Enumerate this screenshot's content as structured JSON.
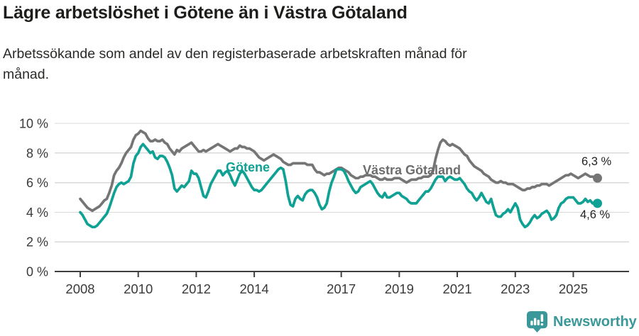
{
  "header": {
    "title": "Lägre arbetslöshet i Götene än i Västra Götaland",
    "subtitle": "Arbetssökande som andel av den registerbaserade arbetskraften månad för\nmånad."
  },
  "footer": {
    "brand": "Newsworthy",
    "logo_icon": "newsworthy-chart-pin-icon"
  },
  "colors": {
    "gotene": "#0fa193",
    "vastra": "#757575",
    "vastra_label": "#6d6d6d",
    "axis": "#3f3f3f",
    "tick_text": "#3a3a3a",
    "grid": "#d9d9d9",
    "brand_teal": "#3b989a"
  },
  "chart_data": {
    "type": "line",
    "x_unit": "month",
    "x_start_year": 2008,
    "x_ticks": [
      2008,
      2010,
      2012,
      2014,
      2017,
      2019,
      2021,
      2023,
      2025
    ],
    "y_ticks": [
      0,
      2,
      4,
      6,
      8,
      10
    ],
    "y_tick_suffix": " %",
    "ylim": [
      0,
      10
    ],
    "grid": "horizontal",
    "legend_position": "inline-labels",
    "series": [
      {
        "name": "Västra Götaland",
        "color_key": "vastra",
        "end_label": "6,3 %",
        "end_value": 6.3,
        "values": [
          4.9,
          4.7,
          4.5,
          4.3,
          4.2,
          4.1,
          4.2,
          4.3,
          4.4,
          4.6,
          4.8,
          4.9,
          5.3,
          5.8,
          6.5,
          6.8,
          7.0,
          7.3,
          7.7,
          8.0,
          8.2,
          8.4,
          8.9,
          9.2,
          9.3,
          9.5,
          9.4,
          9.3,
          9.0,
          8.8,
          8.8,
          8.9,
          8.8,
          8.8,
          8.9,
          8.7,
          8.6,
          8.3,
          8.1,
          7.9,
          8.2,
          8.1,
          8.3,
          8.4,
          8.5,
          8.6,
          8.7,
          8.5,
          8.3,
          8.1,
          8.1,
          8.2,
          8.1,
          8.2,
          8.3,
          8.4,
          8.5,
          8.6,
          8.5,
          8.4,
          8.3,
          8.2,
          8.1,
          8.2,
          8.3,
          8.3,
          8.5,
          8.4,
          8.4,
          8.3,
          8.3,
          8.2,
          8.1,
          7.9,
          7.7,
          7.6,
          7.5,
          7.6,
          7.7,
          7.8,
          7.9,
          7.8,
          7.7,
          7.6,
          7.4,
          7.3,
          7.2,
          7.2,
          7.3,
          7.3,
          7.3,
          7.3,
          7.3,
          7.3,
          7.2,
          7.2,
          7.2,
          6.9,
          6.7,
          6.7,
          6.6,
          6.5,
          6.6,
          6.6,
          6.7,
          6.8,
          6.9,
          7.0,
          7.0,
          6.9,
          6.8,
          6.7,
          6.5,
          6.4,
          6.3,
          6.3,
          6.4,
          6.4,
          6.5,
          6.5,
          6.5,
          6.4,
          6.4,
          6.3,
          6.2,
          6.2,
          6.3,
          6.2,
          6.2,
          6.2,
          6.3,
          6.3,
          6.3,
          6.2,
          6.1,
          6.0,
          6.1,
          6.2,
          6.2,
          6.2,
          6.3,
          6.3,
          6.4,
          6.4,
          6.4,
          6.5,
          6.8,
          7.6,
          8.2,
          8.7,
          8.9,
          8.8,
          8.6,
          8.5,
          8.6,
          8.5,
          8.4,
          8.3,
          8.1,
          7.9,
          7.8,
          7.5,
          7.3,
          7.1,
          7.0,
          6.9,
          6.8,
          6.6,
          6.5,
          6.4,
          6.2,
          6.1,
          6.0,
          6.0,
          6.1,
          6.0,
          6.0,
          5.9,
          5.9,
          5.9,
          5.8,
          5.7,
          5.6,
          5.5,
          5.5,
          5.6,
          5.6,
          5.7,
          5.7,
          5.8,
          5.8,
          5.9,
          5.9,
          5.9,
          5.8,
          5.9,
          6.0,
          6.1,
          6.2,
          6.3,
          6.4,
          6.5,
          6.5,
          6.6,
          6.5,
          6.4,
          6.3,
          6.4,
          6.5,
          6.6,
          6.5,
          6.4,
          6.4,
          6.3,
          6.3
        ]
      },
      {
        "name": "Götene",
        "color_key": "gotene",
        "end_label": "4,6 %",
        "end_value": 4.6,
        "values": [
          4.0,
          3.8,
          3.5,
          3.2,
          3.1,
          3.0,
          3.0,
          3.1,
          3.3,
          3.5,
          3.7,
          3.9,
          4.3,
          4.8,
          5.3,
          5.7,
          5.9,
          6.0,
          5.9,
          6.0,
          6.1,
          6.4,
          7.3,
          7.8,
          8.0,
          8.4,
          8.6,
          8.4,
          8.2,
          8.0,
          8.1,
          7.7,
          7.6,
          7.8,
          7.8,
          7.7,
          7.4,
          7.0,
          6.5,
          5.6,
          5.4,
          5.6,
          5.8,
          5.7,
          5.9,
          6.1,
          6.8,
          6.6,
          6.6,
          6.3,
          5.7,
          5.1,
          5.0,
          5.4,
          5.9,
          6.2,
          6.5,
          6.8,
          6.8,
          6.5,
          6.7,
          6.8,
          6.5,
          6.1,
          5.8,
          6.2,
          6.6,
          6.8,
          6.6,
          6.3,
          6.0,
          5.7,
          5.5,
          5.5,
          5.4,
          5.5,
          5.7,
          5.9,
          6.1,
          6.3,
          6.5,
          6.7,
          6.9,
          7.0,
          6.9,
          6.1,
          5.1,
          4.5,
          4.4,
          4.9,
          5.1,
          4.9,
          4.8,
          5.2,
          5.4,
          5.5,
          5.5,
          5.3,
          5.0,
          4.5,
          4.2,
          4.3,
          4.6,
          5.4,
          6.0,
          6.4,
          6.9,
          6.9,
          6.9,
          6.8,
          6.5,
          6.1,
          5.8,
          5.5,
          5.3,
          5.4,
          5.7,
          5.8,
          5.9,
          6.0,
          6.1,
          5.9,
          5.6,
          5.3,
          5.1,
          5.0,
          5.3,
          5.0,
          5.0,
          5.1,
          5.2,
          5.3,
          5.3,
          5.1,
          5.0,
          4.9,
          4.7,
          4.6,
          4.6,
          4.6,
          4.8,
          5.0,
          5.2,
          5.4,
          5.4,
          5.6,
          5.9,
          6.2,
          6.4,
          6.4,
          6.4,
          6.1,
          6.3,
          6.4,
          6.3,
          6.2,
          6.2,
          6.3,
          6.1,
          5.9,
          5.6,
          5.4,
          5.3,
          5.0,
          4.8,
          5.0,
          5.3,
          5.0,
          4.7,
          4.6,
          4.9,
          4.3,
          3.8,
          3.7,
          3.7,
          3.9,
          4.0,
          4.2,
          4.0,
          4.3,
          4.6,
          4.3,
          3.5,
          3.2,
          3.0,
          3.1,
          3.3,
          3.6,
          3.8,
          3.6,
          3.7,
          3.9,
          4.0,
          4.1,
          3.9,
          3.5,
          3.6,
          3.8,
          4.3,
          4.6,
          4.7,
          4.9,
          5.0,
          5.0,
          5.0,
          4.8,
          4.6,
          4.6,
          4.7,
          4.9,
          4.7,
          4.8,
          4.6,
          4.6,
          4.6
        ]
      }
    ]
  }
}
